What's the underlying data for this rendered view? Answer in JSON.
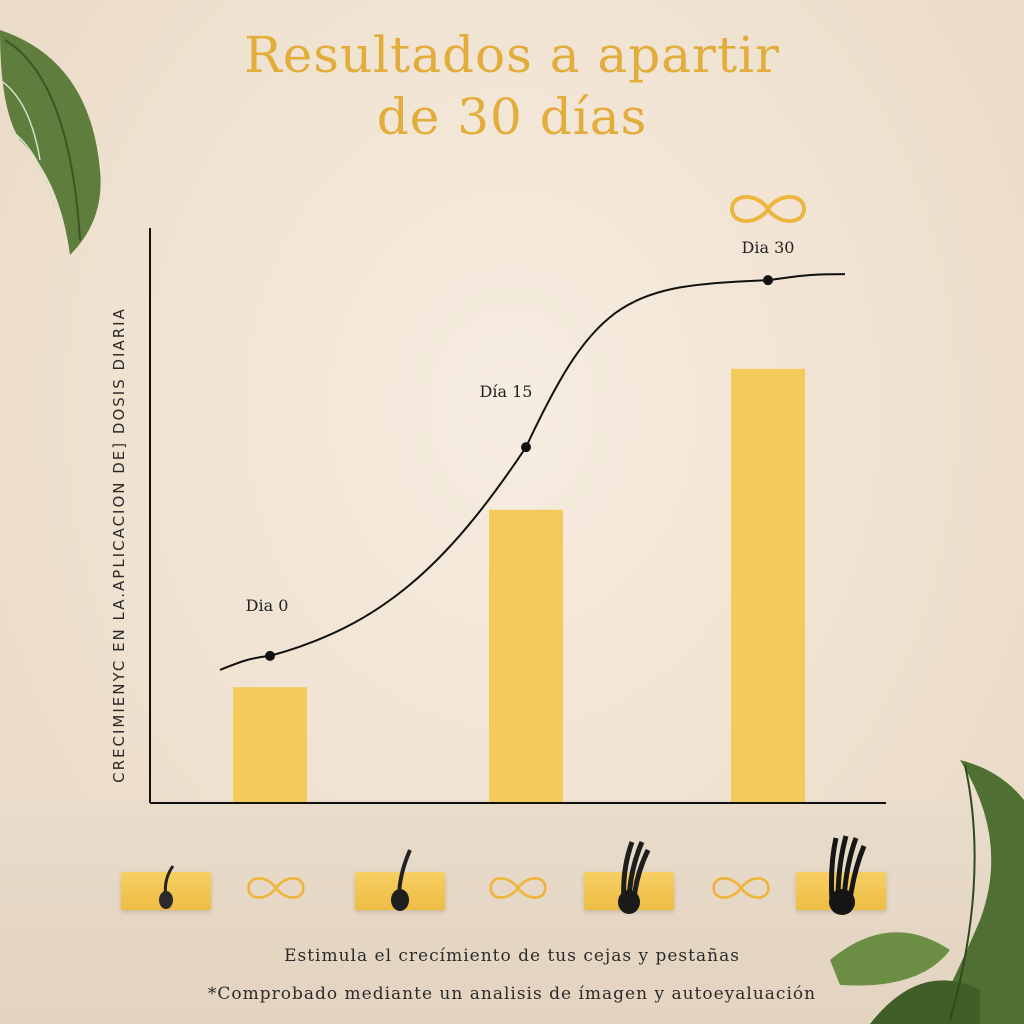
{
  "title_line1": "Resultados a apartir",
  "title_line2": "de 30 días",
  "colors": {
    "title": "#e2ad3b",
    "bar": "#f5c95a",
    "curve": "#111111"
  },
  "chart_data": {
    "type": "bar",
    "title": "Resultados a apartir de 30 días",
    "ylabel": "CRECIMIENYC EN LA.APLICACION DE] DOSIS DIARIA",
    "xlabel": "",
    "categories": [
      "Dia 0",
      "Día 15",
      "Dia 30"
    ],
    "values": [
      22,
      56,
      83
    ],
    "curve": {
      "x": [
        0,
        15,
        30
      ],
      "y": [
        28,
        68,
        100
      ]
    },
    "ylim": [
      0,
      110
    ],
    "grid": false
  },
  "symbols": [
    "infinity-icon",
    "hair-follicle-icon"
  ],
  "caption": "Estimula el crecímiento de tus cejas y pestañas",
  "footnote": "*Comprobado mediante un analisis de ímagen y autoeyaluación"
}
